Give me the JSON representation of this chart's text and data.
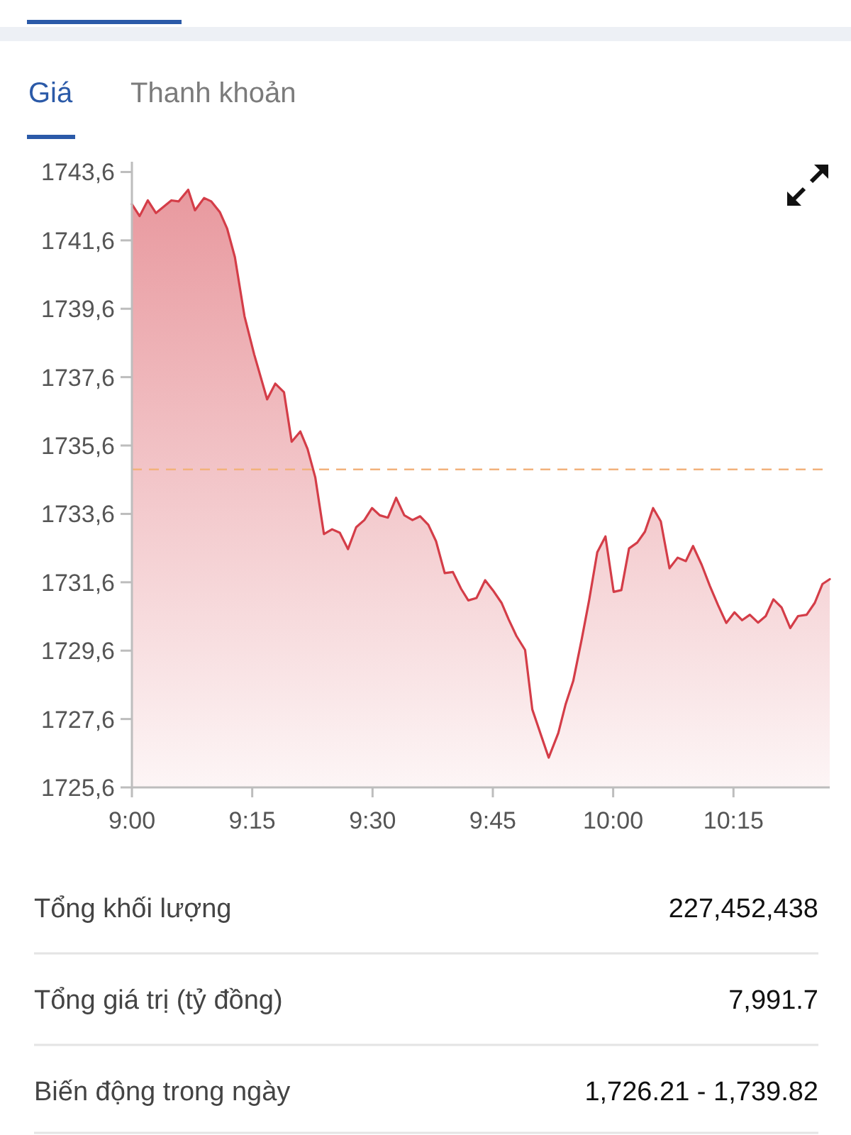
{
  "chart_data": [
    {
      "type": "area",
      "annotations": [
        "Giá",
        "Thanh khoản"
      ],
      "color": "#d43d48",
      "x": [
        9,
        9.016,
        9.033,
        9.05,
        9.082,
        9.097,
        9.117,
        9.131,
        9.15,
        9.165,
        9.183,
        9.198,
        9.214,
        9.234,
        9.254,
        9.281,
        9.298,
        9.316,
        9.332,
        9.35,
        9.365,
        9.381,
        9.399,
        9.416,
        9.432,
        9.449,
        9.466,
        9.483,
        9.499,
        9.515,
        9.532,
        9.549,
        9.566,
        9.583,
        9.599,
        9.616,
        9.632,
        9.65,
        9.667,
        9.684,
        9.699,
        9.716,
        9.734,
        9.75,
        9.768,
        9.783,
        9.799,
        9.817,
        9.832,
        9.852,
        9.866,
        9.886,
        9.901,
        9.917,
        9.935,
        9.95,
        9.967,
        9.984,
        10.001,
        10.017,
        10.033,
        10.05,
        10.066,
        10.083,
        10.099,
        10.117,
        10.134,
        10.151,
        10.166,
        10.184,
        10.201,
        10.218,
        10.235,
        10.252,
        10.268,
        10.284,
        10.301,
        10.317,
        10.333,
        10.35,
        10.368,
        10.384,
        10.402,
        10.419,
        10.435,
        10.45
      ],
      "values": [
        1742.66,
        1742.31,
        1742.77,
        1742.4,
        1742.77,
        1742.74,
        1743.08,
        1742.48,
        1742.84,
        1742.74,
        1742.42,
        1741.94,
        1741.11,
        1739.38,
        1738.27,
        1736.95,
        1737.41,
        1737.16,
        1735.71,
        1736.01,
        1735.5,
        1734.67,
        1733.01,
        1733.15,
        1733.05,
        1732.57,
        1733.21,
        1733.42,
        1733.77,
        1733.56,
        1733.49,
        1734.07,
        1733.56,
        1733.42,
        1733.53,
        1733.28,
        1732.8,
        1731.87,
        1731.9,
        1731.41,
        1731.07,
        1731.14,
        1731.66,
        1731.37,
        1731.0,
        1730.51,
        1730.03,
        1729.62,
        1727.88,
        1727.05,
        1726.47,
        1727.19,
        1728.02,
        1728.71,
        1729.96,
        1731.07,
        1732.48,
        1732.94,
        1731.32,
        1731.37,
        1732.59,
        1732.76,
        1733.08,
        1733.77,
        1733.38,
        1732.01,
        1732.32,
        1732.22,
        1732.66,
        1732.11,
        1731.49,
        1730.93,
        1730.41,
        1730.72,
        1730.49,
        1730.65,
        1730.42,
        1730.61,
        1731.1,
        1730.86,
        1730.26,
        1730.61,
        1730.65,
        1731.0,
        1731.55,
        1731.69
      ],
      "xlim": [
        9,
        10.45
      ],
      "xticks": [
        {
          "value": 9,
          "label": "9:00"
        },
        {
          "value": 9.25,
          "label": "9:15"
        },
        {
          "value": 9.5,
          "label": "9:30"
        },
        {
          "value": 9.75,
          "label": "9:45"
        },
        {
          "value": 10,
          "label": "10:00"
        },
        {
          "value": 10.25,
          "label": "10:15"
        }
      ],
      "ylim": [
        1725.6,
        1743.9
      ],
      "yticks": [
        {
          "value": 1725.6,
          "label": "1725,6"
        },
        {
          "value": 1727.6,
          "label": "1727,6"
        },
        {
          "value": 1729.6,
          "label": "1729,6"
        },
        {
          "value": 1731.6,
          "label": "1731,6"
        },
        {
          "value": 1733.6,
          "label": "1733,6"
        },
        {
          "value": 1735.6,
          "label": "1735,6"
        },
        {
          "value": 1737.6,
          "label": "1737,6"
        },
        {
          "value": 1739.6,
          "label": "1739,6"
        },
        {
          "value": 1741.6,
          "label": "1741,6"
        },
        {
          "value": 1743.6,
          "label": "1743,6"
        }
      ],
      "ref_lines": [
        {
          "axis": "y",
          "value": 1734.9,
          "color": "#f2b27c",
          "line_style": "dashed"
        }
      ]
    },
    {
      "type": "other",
      "annotations": [
        "Tổng khối lượng",
        "227,452,438",
        "Tổng giá trị (tỷ đồng)",
        "7,991.7",
        "Biến động trong ngày",
        "1,726.21 - 1,739.82"
      ]
    }
  ]
}
